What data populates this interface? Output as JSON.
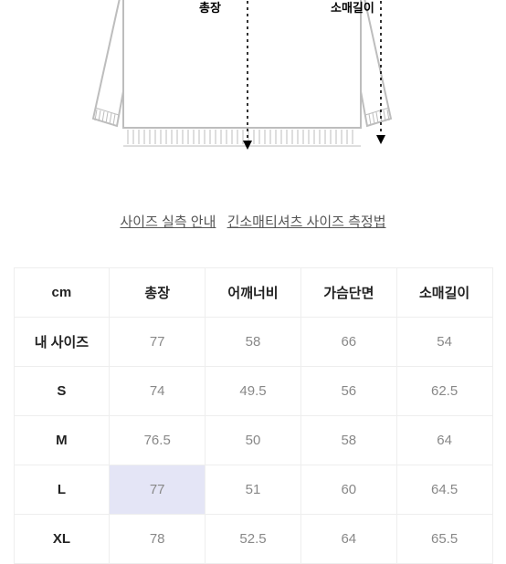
{
  "diagram": {
    "label_total_length": "총장",
    "label_sleeve_length": "소매길이",
    "outline_stroke": "#bdbdbd",
    "arrow_stroke": "#000000"
  },
  "links": {
    "size_guide": "사이즈 실측 안내",
    "long_sleeve_method": "긴소매티셔츠 사이즈 측정법"
  },
  "table": {
    "unit_header": "cm",
    "columns": [
      "총장",
      "어깨너비",
      "가슴단면",
      "소매길이"
    ],
    "rows": [
      {
        "label": "내 사이즈",
        "values": [
          "77",
          "58",
          "66",
          "54"
        ],
        "highlight_col": null
      },
      {
        "label": "S",
        "values": [
          "74",
          "49.5",
          "56",
          "62.5"
        ],
        "highlight_col": null
      },
      {
        "label": "M",
        "values": [
          "76.5",
          "50",
          "58",
          "64"
        ],
        "highlight_col": null
      },
      {
        "label": "L",
        "values": [
          "77",
          "51",
          "60",
          "64.5"
        ],
        "highlight_col": 0
      },
      {
        "label": "XL",
        "values": [
          "78",
          "52.5",
          "64",
          "65.5"
        ],
        "highlight_col": null
      }
    ],
    "border_color": "#eeeeee",
    "value_color": "#888888",
    "header_color": "#222222",
    "highlight_bg": "#e4e5f6"
  }
}
